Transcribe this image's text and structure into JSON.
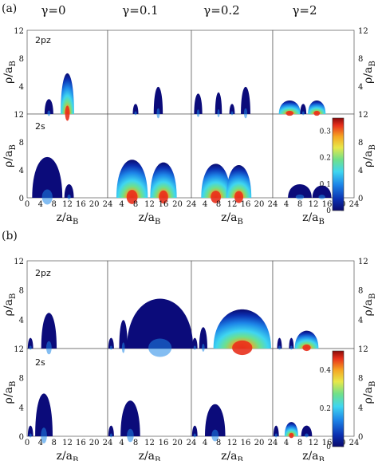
{
  "figure": {
    "panel_labels": [
      "(a)",
      "(b)"
    ],
    "column_headers": [
      "γ=0",
      "γ=0.1",
      "γ=0.2",
      "γ=2"
    ],
    "row_labels": [
      "2pz",
      "2s"
    ],
    "x_axis_label": "z/a",
    "x_axis_subscript": "B",
    "y_axis_label": "ρ/a",
    "y_axis_subscript": "B",
    "x_ticks": [
      "0",
      "4",
      "8",
      "12",
      "16",
      "20",
      "24"
    ],
    "y_ticks": [
      "0",
      "4",
      "8",
      "12"
    ],
    "colormap": [
      "#0a0a6e",
      "#0b2fb0",
      "#1d86e8",
      "#3fd6f0",
      "#6fe08a",
      "#e8e84a",
      "#f5a623",
      "#e8301c",
      "#8b0a0a"
    ]
  },
  "chart_data": [
    {
      "type": "heatmap",
      "panel": "(a)",
      "columns": [
        "γ=0",
        "γ=0.1",
        "γ=0.2",
        "γ=2"
      ],
      "rows": [
        "2pz",
        "2s"
      ],
      "x_range": [
        0,
        24
      ],
      "y_range": [
        0,
        12
      ],
      "colorbar": {
        "range": [
          0,
          0.35
        ],
        "ticks": [
          "0",
          "0.1",
          "0.2",
          "0.3"
        ]
      },
      "lobes": [
        {
          "row": 0,
          "col": 0,
          "blobs": [
            [
              6.5,
              2.2,
              1.3,
              0.15
            ],
            [
              12,
              6,
              2.0,
              0.3
            ]
          ]
        },
        {
          "row": 0,
          "col": 1,
          "blobs": [
            [
              8,
              1.5,
              0.8,
              0.1
            ],
            [
              14.5,
              4,
              1.3,
              0.15
            ]
          ]
        },
        {
          "row": 0,
          "col": 2,
          "blobs": [
            [
              2,
              3,
              1.2,
              0.1
            ],
            [
              8,
              3.2,
              1.0,
              0.1
            ],
            [
              12,
              1.5,
              0.8,
              0.1
            ],
            [
              16,
              4,
              1.4,
              0.15
            ]
          ]
        },
        {
          "row": 0,
          "col": 3,
          "blobs": [
            [
              5,
              2,
              3.2,
              0.35
            ],
            [
              9,
              1.5,
              0.9,
              0.2
            ],
            [
              13,
              2,
              2.6,
              0.32
            ]
          ]
        },
        {
          "row": 1,
          "col": 0,
          "blobs": [
            [
              6,
              6,
              4.5,
              0.15
            ],
            [
              12.5,
              2,
              1.4,
              0.2
            ]
          ]
        },
        {
          "row": 1,
          "col": 1,
          "blobs": [
            [
              7,
              5.6,
              4.5,
              0.32
            ],
            [
              16,
              5.2,
              3.8,
              0.3
            ]
          ]
        },
        {
          "row": 1,
          "col": 2,
          "blobs": [
            [
              7.2,
              5,
              4.3,
              0.35
            ],
            [
              14,
              4.8,
              3.7,
              0.32
            ]
          ]
        },
        {
          "row": 1,
          "col": 3,
          "blobs": [
            [
              8,
              2,
              3.5,
              0.25
            ],
            [
              14.5,
              1.8,
              2.8,
              0.2
            ]
          ]
        }
      ]
    },
    {
      "type": "heatmap",
      "panel": "(b)",
      "columns": [
        "γ=0",
        "γ=0.1",
        "γ=0.2",
        "γ=2"
      ],
      "rows": [
        "2pz",
        "2s"
      ],
      "x_range": [
        0,
        24
      ],
      "y_range": [
        0,
        12
      ],
      "colorbar": {
        "range": [
          0,
          0.5
        ],
        "ticks": [
          "0",
          "0.2",
          "0.4"
        ]
      },
      "lobes": [
        {
          "row": 0,
          "col": 0,
          "blobs": [
            [
              1,
              1.5,
              0.8,
              0.1
            ],
            [
              6.5,
              5,
              2.3,
              0.12
            ]
          ]
        },
        {
          "row": 0,
          "col": 1,
          "blobs": [
            [
              1,
              1.5,
              0.8,
              0.1
            ],
            [
              4.5,
              4,
              1.2,
              0.08
            ],
            [
              15,
              7,
              9.5,
              0.25
            ]
          ]
        },
        {
          "row": 0,
          "col": 2,
          "blobs": [
            [
              1,
              1.5,
              0.8,
              0.1
            ],
            [
              3.5,
              3,
              1.2,
              0.08
            ],
            [
              15,
              5.5,
              8.5,
              0.28
            ]
          ]
        },
        {
          "row": 0,
          "col": 3,
          "blobs": [
            [
              2,
              1.5,
              0.7,
              0.1
            ],
            [
              5.5,
              1.5,
              0.7,
              0.1
            ],
            [
              10,
              2.5,
              3.5,
              0.4
            ]
          ]
        },
        {
          "row": 1,
          "col": 0,
          "blobs": [
            [
              1,
              1.5,
              0.8,
              0.15
            ],
            [
              5,
              6,
              2.6,
              0.15
            ]
          ]
        },
        {
          "row": 1,
          "col": 1,
          "blobs": [
            [
              1,
              1.5,
              0.8,
              0.15
            ],
            [
              6.5,
              5,
              2.8,
              0.15
            ]
          ]
        },
        {
          "row": 1,
          "col": 2,
          "blobs": [
            [
              1,
              1.5,
              0.8,
              0.15
            ],
            [
              7,
              4.5,
              3.0,
              0.18
            ]
          ]
        },
        {
          "row": 1,
          "col": 3,
          "blobs": [
            [
              1,
              1.5,
              0.8,
              0.2
            ],
            [
              5.5,
              2,
              2.0,
              0.35
            ],
            [
              10,
              1.5,
              1.6,
              0.2
            ]
          ]
        }
      ]
    }
  ]
}
